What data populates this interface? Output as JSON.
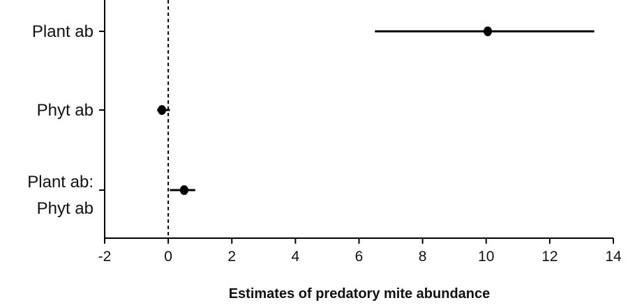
{
  "chart_data": {
    "type": "forest",
    "xlabel": "Estimates of predatory mite abundance",
    "ylabel": "",
    "xlim": [
      -2,
      14
    ],
    "x_ticks": [
      -2,
      0,
      2,
      4,
      6,
      8,
      10,
      12,
      14
    ],
    "x_tick_labels": [
      "-2",
      "0",
      "2",
      "4",
      "6",
      "8",
      "10",
      "12",
      "14"
    ],
    "reference_line": 0,
    "grid": false,
    "colors": {
      "line": "#000000",
      "point": "#000000"
    },
    "rows": [
      {
        "label_lines": [
          "Plant ab"
        ],
        "estimate": 10.05,
        "lower": 6.5,
        "upper": 13.4
      },
      {
        "label_lines": [
          "Phyt ab"
        ],
        "estimate": -0.2,
        "lower": -0.35,
        "upper": 0.05
      },
      {
        "label_lines": [
          "Plant ab:",
          "Phyt ab"
        ],
        "estimate": 0.5,
        "lower": 0.05,
        "upper": 0.85
      }
    ]
  }
}
